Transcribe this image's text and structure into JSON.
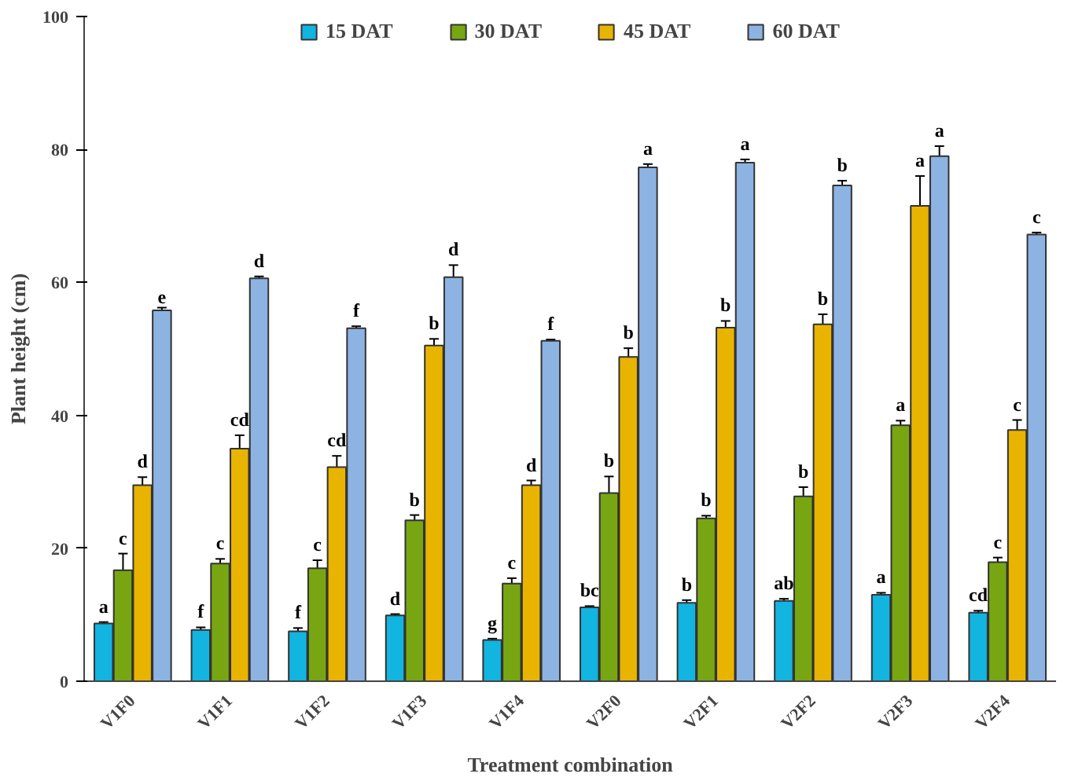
{
  "chart_data": {
    "type": "bar",
    "xlabel": "Treatment combination",
    "ylabel": "Plant height (cm)",
    "categories": [
      "V1F0",
      "V1F1",
      "V1F2",
      "V1F3",
      "V1F4",
      "V2F0",
      "V2F1",
      "V2F2",
      "V2F3",
      "V2F4"
    ],
    "series": [
      {
        "name": "15 DAT",
        "color": "#12b4e0",
        "values": [
          8.7,
          7.7,
          7.5,
          9.9,
          6.2,
          11.1,
          11.8,
          12.1,
          13.0,
          10.3
        ],
        "errors": [
          0.2,
          0.4,
          0.5,
          0.2,
          0.2,
          0.2,
          0.4,
          0.3,
          0.3,
          0.3
        ]
      },
      {
        "name": "30 DAT",
        "color": "#78a612",
        "values": [
          16.7,
          17.7,
          17.0,
          24.2,
          14.7,
          28.3,
          24.5,
          27.8,
          38.5,
          17.9
        ],
        "errors": [
          2.5,
          0.7,
          1.2,
          0.8,
          0.8,
          2.5,
          0.4,
          1.4,
          0.7,
          0.7
        ]
      },
      {
        "name": "45 DAT",
        "color": "#e8b400",
        "values": [
          29.5,
          35.0,
          32.2,
          50.5,
          29.5,
          48.8,
          53.2,
          53.7,
          71.5,
          37.8
        ],
        "errors": [
          1.2,
          2.0,
          1.7,
          1.0,
          0.7,
          1.3,
          1.0,
          1.5,
          4.5,
          1.5
        ]
      },
      {
        "name": "60 DAT",
        "color": "#8db3e2",
        "values": [
          55.8,
          60.6,
          53.1,
          60.8,
          51.2,
          77.3,
          78.0,
          74.6,
          79.0,
          67.2
        ],
        "errors": [
          0.4,
          0.3,
          0.3,
          1.8,
          0.2,
          0.5,
          0.5,
          0.7,
          1.5,
          0.3
        ]
      }
    ],
    "ylim": [
      0,
      100
    ],
    "yticks": [
      0,
      20,
      40,
      60,
      80,
      100
    ],
    "grid": false,
    "legend": "top",
    "annotations": [
      "a",
      "c",
      "d",
      "e",
      "f",
      "c",
      "cd",
      "d",
      "f",
      "c",
      "cd",
      "f",
      "d",
      "b",
      "b",
      "d",
      "g",
      "c",
      "d",
      "f",
      "bc",
      "b",
      "b",
      "a",
      "b",
      "b",
      "b",
      "a",
      "ab",
      "b",
      "b",
      "b",
      "a",
      "a",
      "a",
      "a",
      "cd",
      "c",
      "c",
      "c"
    ]
  }
}
